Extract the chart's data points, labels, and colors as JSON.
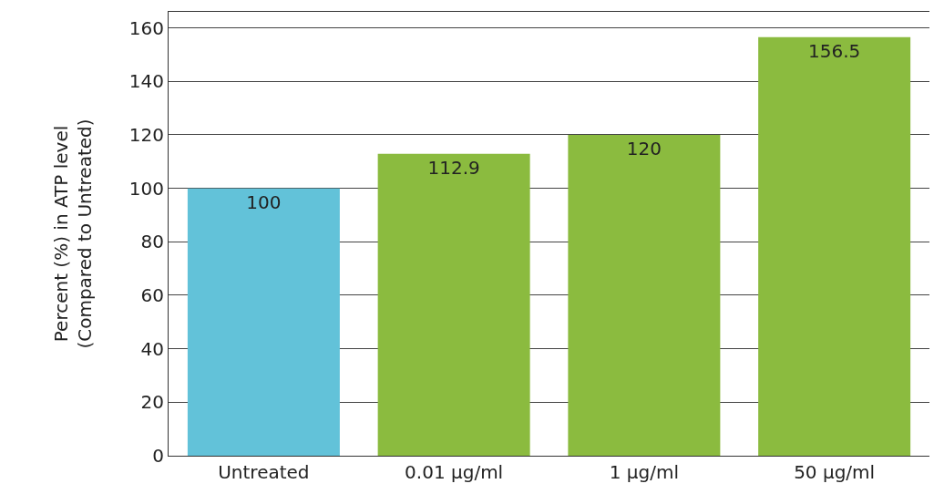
{
  "chart_data": {
    "type": "bar",
    "ylabel": "Percent (%) in ATP level\n(Compared to Untreated)",
    "categories": [
      "Untreated",
      "0.01 µg/ml",
      "1 µg/ml",
      "50 µg/ml"
    ],
    "values": [
      100,
      112.9,
      120,
      156.5
    ],
    "colors": [
      "#62c2d9",
      "#8bbb3f",
      "#8bbb3f",
      "#8bbb3f"
    ],
    "ylim": [
      0,
      166
    ],
    "yticks": [
      0,
      20,
      40,
      60,
      80,
      100,
      120,
      140,
      160
    ],
    "grid": "y",
    "data_labels": true
  }
}
